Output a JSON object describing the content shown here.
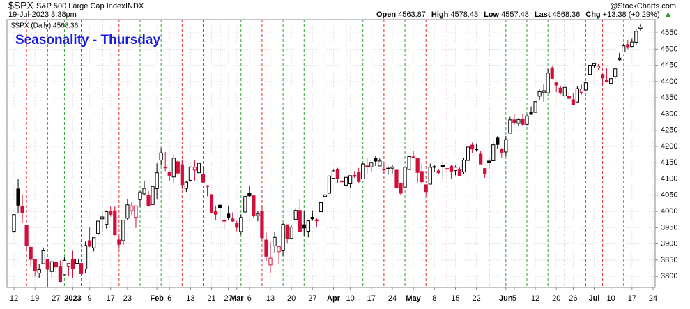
{
  "header": {
    "symbol": "$SPX",
    "name": "S&P 500 Large Cap Index",
    "exchange": "INDX",
    "timestamp": "19-Jul-2023 3:38pm",
    "source": "@StockCharts.com",
    "quote": [
      {
        "label": "Open",
        "value": 4563.87
      },
      {
        "label": "High",
        "value": 4578.43
      },
      {
        "label": "Low",
        "value": 4557.48
      },
      {
        "label": "Last",
        "value": 4568.36
      },
      {
        "label": "Chg",
        "value": "+13.38 (+0.29%)"
      }
    ]
  },
  "chart_data": {
    "type": "candlestick",
    "title": "Seasonality - Thursday",
    "legend": "$SPX (Daily) 4568.36",
    "up_color": "#000000",
    "down_color": "#d0103a",
    "grid": true,
    "ylim": [
      3766,
      4591
    ],
    "yticks": [
      3800,
      3850,
      3900,
      3950,
      4000,
      4050,
      4100,
      4150,
      4200,
      4250,
      4300,
      4350,
      4400,
      4450,
      4500,
      4550
    ],
    "categories": [
      "12",
      null,
      null,
      null,
      null,
      "19",
      null,
      null,
      null,
      null,
      "27",
      null,
      null,
      null,
      "2023",
      null,
      null,
      null,
      "9",
      null,
      null,
      null,
      null,
      "17",
      null,
      null,
      null,
      "23",
      null,
      null,
      null,
      null,
      null,
      null,
      "Feb",
      null,
      null,
      "6",
      null,
      null,
      null,
      null,
      "13",
      null,
      null,
      null,
      null,
      "21",
      null,
      null,
      null,
      "27",
      null,
      "Mar",
      null,
      null,
      "6",
      null,
      null,
      null,
      null,
      "13",
      null,
      null,
      null,
      null,
      "20",
      null,
      null,
      null,
      null,
      "27",
      null,
      null,
      null,
      null,
      "Apr",
      null,
      null,
      null,
      "10",
      null,
      null,
      null,
      null,
      "17",
      null,
      null,
      null,
      null,
      "24",
      null,
      null,
      null,
      null,
      "May",
      null,
      null,
      null,
      null,
      "8",
      null,
      null,
      null,
      null,
      "15",
      null,
      null,
      null,
      null,
      "22",
      null,
      null,
      null,
      null,
      null,
      null,
      "Jun",
      null,
      "5",
      null,
      null,
      null,
      null,
      "12",
      null,
      null,
      null,
      null,
      "20",
      null,
      null,
      null,
      "26",
      null,
      null,
      null,
      null,
      "Jul",
      null,
      null,
      null,
      "10",
      null,
      null,
      null,
      null,
      "17",
      null,
      null,
      null,
      null,
      "24"
    ],
    "open": [
      3939,
      4069,
      4015,
      3958,
      3890,
      3853,
      3810,
      3839,
      3853,
      3815,
      3843,
      3829,
      3805,
      3830,
      3853,
      3840,
      3840,
      3823,
      3910,
      3888,
      3932,
      3977,
      3960,
      3999,
      4002,
      3912,
      3910,
      3979,
      4002,
      3982,
      4036,
      4054,
      4049,
      4021,
      4070,
      4158,
      4136,
      4120,
      4106,
      4153,
      4144,
      4071,
      4096,
      4127,
      4119,
      4114,
      4077,
      4052,
      4001,
      4019,
      3973,
      3992,
      3977,
      3964,
      3938,
      3998,
      4055,
      4048,
      3987,
      3999,
      3912,
      3835,
      3894,
      3876,
      3879,
      3959,
      3917,
      3975,
      4003,
      3959,
      3939,
      3982,
      3974,
      3999,
      4046,
      4056,
      4102,
      4130,
      4094,
      4081,
      4085,
      4111,
      4121,
      4100,
      4140,
      4137,
      4164,
      4140,
      4130,
      4132,
      4133,
      4127,
      4087,
      4075,
      4129,
      4166,
      4164,
      4123,
      4082,
      4084,
      4136,
      4125,
      4143,
      4132,
      4139,
      4126,
      4128,
      4122,
      4157,
      4204,
      4191,
      4176,
      4132,
      4155,
      4156,
      4226,
      4191,
      4183,
      4241,
      4282,
      4271,
      4285,
      4268,
      4305,
      4305,
      4355,
      4367,
      4365,
      4440,
      4396,
      4380,
      4356,
      4354,
      4344,
      4337,
      4367,
      4374,
      4422,
      4450,
      4442,
      4422,
      4405,
      4394,
      4415,
      4467,
      4491,
      4514,
      4508,
      4521,
      4563.87,
      null,
      null,
      null
    ],
    "high": [
      3991,
      4100,
      4053,
      3959,
      3890,
      3854,
      3838,
      3889,
      3853,
      3846,
      3846,
      3849,
      3858,
      3840,
      3879,
      3873,
      3840,
      3907,
      3951,
      3920,
      3970,
      3997,
      4003,
      4015,
      4015,
      3922,
      3973,
      4039,
      4028,
      4019,
      4061,
      4095,
      4063,
      4077,
      4148,
      4195,
      4183,
      4124,
      4176,
      4157,
      4157,
      4094,
      4138,
      4159,
      4148,
      4136,
      4081,
      4052,
      4018,
      4028,
      3979,
      4018,
      3997,
      3971,
      3991,
      4049,
      4078,
      4051,
      4000,
      4018,
      3935,
      3906,
      3937,
      3894,
      3965,
      3959,
      3956,
      4010,
      4039,
      4000,
      3973,
      4003,
      3979,
      4030,
      4058,
      4110,
      4128,
      4134,
      4100,
      4108,
      4110,
      4124,
      4134,
      4150,
      4163,
      4152,
      4170,
      4163,
      4148,
      4138,
      4142,
      4127,
      4089,
      4138,
      4170,
      4186,
      4164,
      4148,
      4083,
      4147,
      4143,
      4130,
      4154,
      4132,
      4143,
      4141,
      4135,
      4164,
      4202,
      4212,
      4209,
      4186,
      4133,
      4165,
      4213,
      4232,
      4195,
      4232,
      4291,
      4299,
      4288,
      4299,
      4299,
      4323,
      4339,
      4375,
      4391,
      4439,
      4448,
      4400,
      4387,
      4382,
      4366,
      4363,
      4385,
      4390,
      4398,
      4458,
      4457,
      4454,
      4423,
      4441,
      4412,
      4443,
      4488,
      4517,
      4527,
      4532,
      4562,
      4578.43,
      null,
      null,
      null
    ],
    "low": [
      3935,
      3994,
      3966,
      3879,
      3828,
      3800,
      3795,
      3839,
      3765,
      3797,
      3813,
      3780,
      3805,
      3801,
      3794,
      3815,
      3803,
      3809,
      3890,
      3877,
      3924,
      3937,
      3947,
      3984,
      3926,
      3885,
      3897,
      3972,
      3989,
      3949,
      4013,
      4049,
      4015,
      4021,
      4037,
      4141,
      4124,
      4094,
      4088,
      4111,
      4069,
      4060,
      4092,
      4095,
      4103,
      4088,
      4047,
      3995,
      3973,
      3972,
      3943,
      3973,
      3968,
      3939,
      3928,
      3998,
      4045,
      3980,
      3970,
      3908,
      3847,
      3809,
      3874,
      3839,
      3863,
      3901,
      3917,
      3972,
      3936,
      3925,
      3920,
      3971,
      3952,
      3999,
      4032,
      4056,
      4101,
      4087,
      4073,
      4069,
      4073,
      4103,
      4086,
      4100,
      4114,
      4123,
      4140,
      4140,
      4114,
      4113,
      4117,
      4072,
      4049,
      4075,
      4128,
      4164,
      4089,
      4088,
      4049,
      4084,
      4123,
      4116,
      4098,
      4109,
      4099,
      4111,
      4109,
      4114,
      4149,
      4180,
      4184,
      4145,
      4103,
      4129,
      4156,
      4193,
      4166,
      4171,
      4241,
      4267,
      4263,
      4265,
      4266,
      4297,
      4305,
      4342,
      4338,
      4364,
      4408,
      4367,
      4360,
      4353,
      4341,
      4327,
      4337,
      4360,
      4372,
      4422,
      4443,
      4436,
      4385,
      4397,
      4389,
      4408,
      4464,
      4490,
      4500,
      4504,
      4514,
      4557.48,
      null,
      null,
      null
    ],
    "close": [
      3990,
      4019,
      3995,
      3895,
      3852,
      3817,
      3821,
      3879,
      3822,
      3845,
      3829,
      3783,
      3849,
      3840,
      3824,
      3853,
      3808,
      3895,
      3893,
      3919,
      3970,
      3983,
      3999,
      3991,
      3928,
      3899,
      3973,
      4020,
      4017,
      4016,
      4060,
      4071,
      4018,
      4077,
      4119,
      4180,
      4136,
      4111,
      4164,
      4118,
      4082,
      4090,
      4137,
      4136,
      4148,
      4090,
      4079,
      3997,
      3991,
      4012,
      3970,
      3982,
      3970,
      3951,
      3981,
      4046,
      4048,
      3986,
      3992,
      3919,
      3862,
      3856,
      3920,
      3892,
      3960,
      3917,
      3952,
      4003,
      3937,
      3949,
      3971,
      3977,
      3971,
      4027,
      4051,
      4109,
      4125,
      4101,
      4091,
      4105,
      4110,
      4108,
      4092,
      4146,
      4138,
      4151,
      4155,
      4155,
      4130,
      4133,
      4137,
      4072,
      4056,
      4136,
      4169,
      4168,
      4120,
      4091,
      4061,
      4136,
      4138,
      4119,
      4138,
      4130,
      4124,
      4136,
      4110,
      4158,
      4198,
      4192,
      4192,
      4146,
      4115,
      4151,
      4205,
      4206,
      4180,
      4221,
      4282,
      4273,
      4283,
      4268,
      4293,
      4299,
      4338,
      4369,
      4372,
      4426,
      4410,
      4389,
      4366,
      4382,
      4348,
      4328,
      4378,
      4377,
      4396,
      4450,
      4455,
      4447,
      4411,
      4399,
      4409,
      4439,
      4472,
      4510,
      4505,
      4522,
      4555,
      4568.36,
      null,
      null,
      null
    ],
    "day_line_colors": [
      null,
      null,
      null,
      "#e0302a",
      null,
      null,
      null,
      null,
      "#e0302a",
      null,
      null,
      null,
      "#33a033",
      null,
      null,
      null,
      "#e0302a",
      null,
      null,
      null,
      null,
      "#33a033",
      null,
      null,
      null,
      "#e0302a",
      null,
      null,
      null,
      null,
      "#33a033",
      null,
      null,
      null,
      null,
      "#33a033",
      null,
      null,
      null,
      null,
      "#e0302a",
      null,
      null,
      null,
      null,
      "#e0302a",
      null,
      null,
      null,
      "#33a033",
      null,
      null,
      null,
      null,
      "#33a033",
      null,
      null,
      null,
      null,
      "#e0302a",
      null,
      null,
      null,
      null,
      "#33a033",
      null,
      null,
      null,
      null,
      "#33a033",
      null,
      null,
      null,
      null,
      "#33a033",
      null,
      null,
      null,
      null,
      "#33a033",
      null,
      null,
      null,
      "#33a033",
      null,
      null,
      null,
      null,
      "#e0302a",
      null,
      null,
      null,
      null,
      "#33a033",
      null,
      null,
      null,
      null,
      "#e0302a",
      null,
      null,
      null,
      null,
      "#e0302a",
      null,
      null,
      null,
      null,
      "#33a033",
      null,
      null,
      null,
      null,
      "#33a033",
      null,
      null,
      null,
      "#33a033",
      null,
      null,
      null,
      null,
      "#33a033",
      null,
      null,
      null,
      null,
      "#33a033",
      null,
      null,
      null,
      "#33a033",
      null,
      null,
      null,
      null,
      "#33a033",
      null,
      null,
      null,
      "#e0302a",
      null,
      null,
      null,
      null,
      "#33a033",
      null,
      null,
      null,
      null,
      null,
      null,
      null
    ]
  }
}
